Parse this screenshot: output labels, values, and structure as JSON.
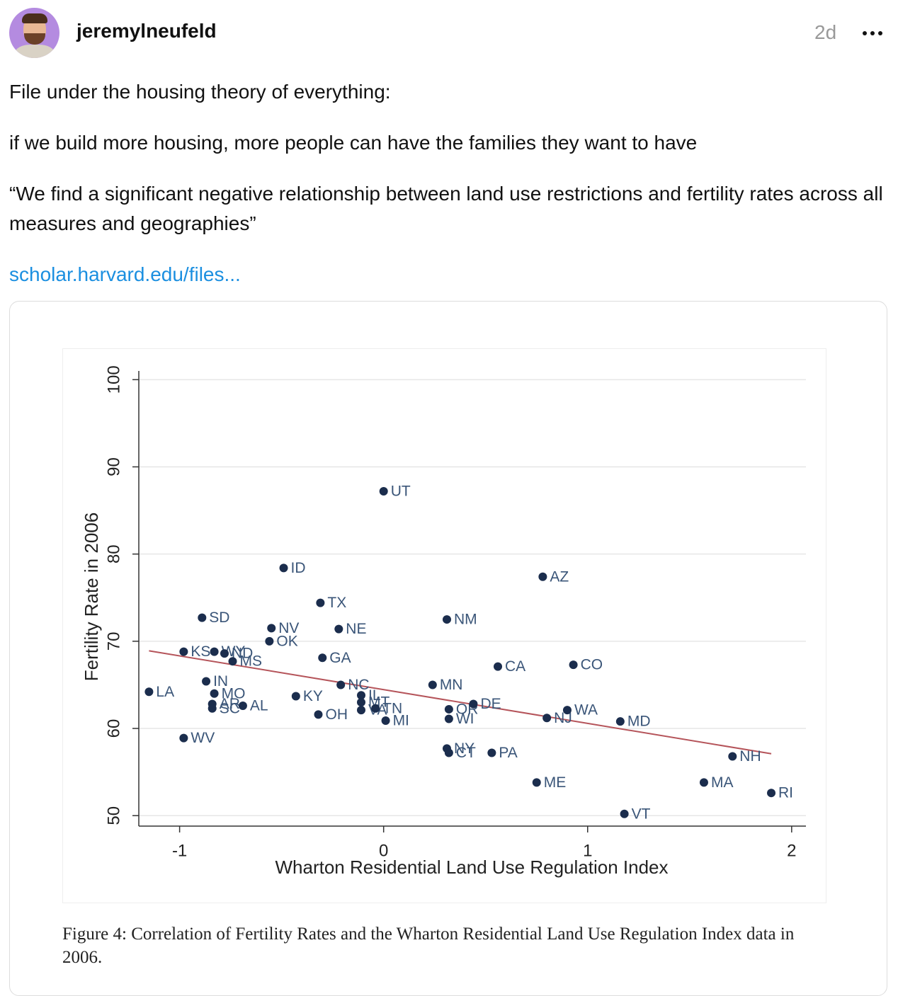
{
  "post": {
    "author": "jeremylneufeld",
    "time": "2d",
    "paragraphs": [
      "File under the housing theory of everything:",
      "if we build more housing, more people can have the families they want to have",
      "“We find a significant negative relationship between land use restrictions and fertility rates across all measures and geographies”"
    ],
    "link": "scholar.harvard.edu/files...",
    "caption": "Figure 4: Correlation of Fertility Rates and the Wharton Residential Land Use Regulation Index data in 2006."
  },
  "chart_data": {
    "type": "scatter",
    "x_label": "Wharton Residential Land Use Regulation Index",
    "y_label": "Fertility Rate in 2006",
    "labels": [
      "UT",
      "ID",
      "AZ",
      "TX",
      "SD",
      "NM",
      "NV",
      "NE",
      "OK",
      "KS",
      "WY",
      "ND",
      "MS",
      "GA",
      "CA",
      "CO",
      "LA",
      "IN",
      "MO",
      "AL",
      "AR",
      "SC",
      "KY",
      "OH",
      "NC",
      "IL",
      "MT",
      "VA",
      "TN",
      "MI",
      "MN",
      "OR",
      "WI",
      "DE",
      "NJ",
      "WA",
      "MD",
      "NY",
      "CT",
      "PA",
      "ME",
      "VT",
      "MA",
      "NH",
      "RI",
      "WV"
    ],
    "x": [
      0.0,
      -0.49,
      0.78,
      -0.31,
      -0.89,
      0.31,
      -0.55,
      -0.22,
      -0.56,
      -0.98,
      -0.83,
      -0.78,
      -0.74,
      -0.3,
      0.56,
      0.93,
      -1.15,
      -0.87,
      -0.83,
      -0.69,
      -0.84,
      -0.84,
      -0.43,
      -0.32,
      -0.21,
      -0.11,
      -0.11,
      -0.11,
      -0.04,
      0.01,
      0.24,
      0.32,
      0.32,
      0.44,
      0.8,
      0.9,
      1.16,
      0.31,
      0.32,
      0.53,
      0.75,
      1.18,
      1.57,
      1.71,
      1.9,
      -0.98
    ],
    "y": [
      87.2,
      78.4,
      77.4,
      74.4,
      72.7,
      72.5,
      71.5,
      71.4,
      70.0,
      68.8,
      68.8,
      68.6,
      67.7,
      68.1,
      67.1,
      67.3,
      64.2,
      65.4,
      64.0,
      62.6,
      62.8,
      62.3,
      63.7,
      61.6,
      65.0,
      63.8,
      63.0,
      62.1,
      62.3,
      60.9,
      65.0,
      62.2,
      61.1,
      62.8,
      61.2,
      62.1,
      60.8,
      57.7,
      57.2,
      57.2,
      53.8,
      50.2,
      53.8,
      56.8,
      52.6,
      58.9
    ],
    "color": "#1b2d4d",
    "label_color": "#3a5578",
    "trendline": {
      "x": [
        -1.15,
        1.9
      ],
      "y": [
        68.9,
        57.1
      ],
      "color": "#b5545a"
    },
    "xlim": [
      -1.2,
      2.07
    ],
    "ylim": [
      48.8,
      101
    ],
    "xticks": [
      -1,
      0,
      1,
      2
    ],
    "yticks": [
      50,
      60,
      70,
      80,
      90,
      100
    ],
    "grid": true
  }
}
